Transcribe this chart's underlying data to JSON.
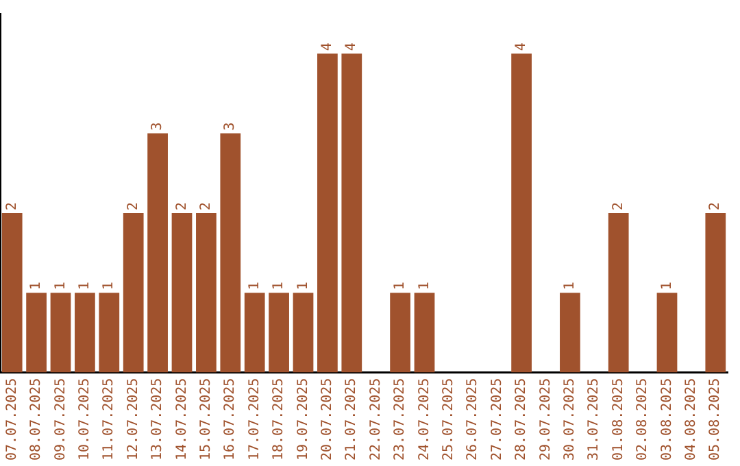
{
  "chart_data": {
    "type": "bar",
    "categories": [
      "07.07.2025",
      "08.07.2025",
      "09.07.2025",
      "10.07.2025",
      "11.07.2025",
      "12.07.2025",
      "13.07.2025",
      "14.07.2025",
      "15.07.2025",
      "16.07.2025",
      "17.07.2025",
      "18.07.2025",
      "19.07.2025",
      "20.07.2025",
      "21.07.2025",
      "22.07.2025",
      "23.07.2025",
      "24.07.2025",
      "25.07.2025",
      "26.07.2025",
      "27.07.2025",
      "28.07.2025",
      "29.07.2025",
      "30.07.2025",
      "31.07.2025",
      "01.08.2025",
      "02.08.2025",
      "03.08.2025",
      "04.08.2025",
      "05.08.2025"
    ],
    "values": [
      2,
      1,
      1,
      1,
      1,
      2,
      3,
      2,
      2,
      3,
      1,
      1,
      1,
      4,
      4,
      null,
      1,
      1,
      null,
      null,
      null,
      4,
      null,
      1,
      null,
      2,
      null,
      1,
      null,
      2
    ],
    "color": "#a0522d",
    "data_labels": true,
    "grid": false,
    "legend": false
  }
}
